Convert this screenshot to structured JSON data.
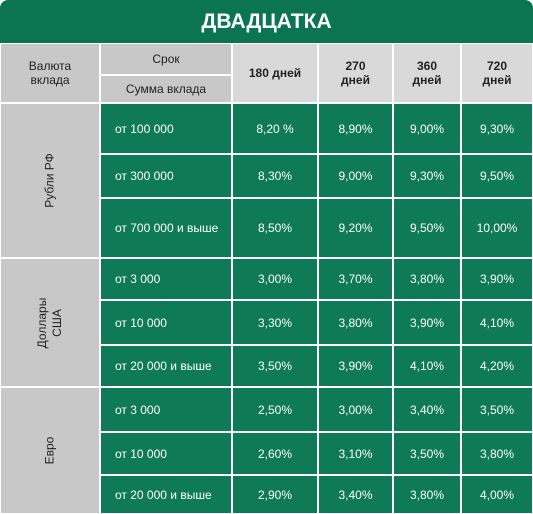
{
  "title": "ДВАДЦАТКА",
  "header": {
    "currency": "Валюта вклада",
    "term": "Срок",
    "amount": "Сумма вклада",
    "terms": [
      "180 дней",
      "270 дней",
      "360 дней",
      "720 дней"
    ]
  },
  "groups": [
    {
      "currency": "Рубли РФ",
      "rows": [
        {
          "amount": "от 100 000",
          "rates": [
            "8,20 %",
            "8,90%",
            "9,00%",
            "9,30%"
          ]
        },
        {
          "amount": "от 300 000",
          "rates": [
            "8,30%",
            "9,00%",
            "9,30%",
            "9,50%"
          ]
        },
        {
          "amount": "от 700 000 и выше",
          "rates": [
            "8,50%",
            "9,20%",
            "9,50%",
            "10,00%"
          ]
        }
      ]
    },
    {
      "currency": "Доллары США",
      "rows": [
        {
          "amount": "от 3 000",
          "rates": [
            "3,00%",
            "3,70%",
            "3,80%",
            "3,90%"
          ]
        },
        {
          "amount": "от 10 000",
          "rates": [
            "3,30%",
            "3,80%",
            "3,90%",
            "4,10%"
          ]
        },
        {
          "amount": "от 20 000 и выше",
          "rates": [
            "3,50%",
            "3,90%",
            "4,10%",
            "4,20%"
          ]
        }
      ]
    },
    {
      "currency": "Евро",
      "rows": [
        {
          "amount": "от 3 000",
          "rates": [
            "2,50%",
            "3,00%",
            "3,40%",
            "3,50%"
          ]
        },
        {
          "amount": "от 10 000",
          "rates": [
            "2,60%",
            "3,10%",
            "3,50%",
            "3,80%"
          ]
        },
        {
          "amount": "от 20 000 и выше",
          "rates": [
            "2,90%",
            "3,40%",
            "3,80%",
            "4,00%"
          ]
        }
      ]
    }
  ]
}
